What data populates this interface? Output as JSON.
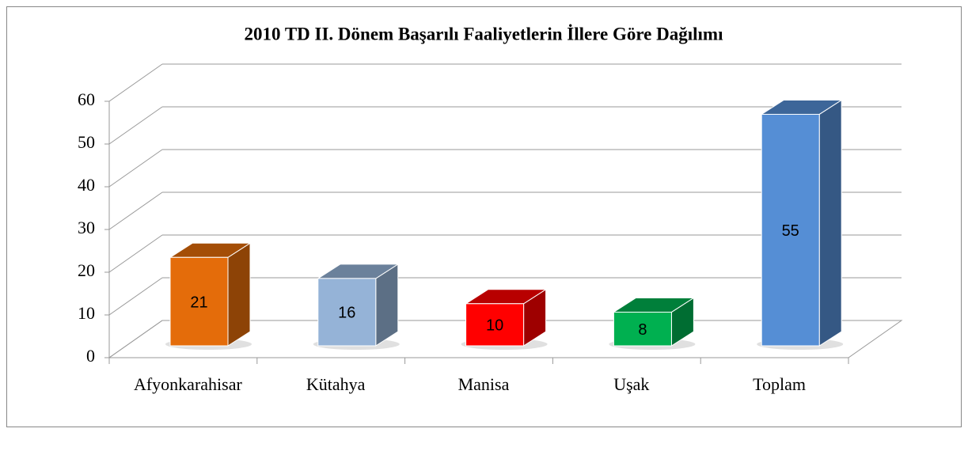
{
  "chart_data": {
    "type": "bar3d",
    "title": "2010 TD II. Dönem Başarılı Faaliyetlerin İllere Göre Dağılımı",
    "categories": [
      "Afyonkarahisar",
      "Kütahya",
      "Manisa",
      "Uşak",
      "Toplam"
    ],
    "values": [
      21,
      16,
      10,
      8,
      55
    ],
    "colors": [
      "#e46c0a",
      "#95b3d7",
      "#ff0000",
      "#00b050",
      "#558ed5"
    ],
    "ylim": [
      0,
      60
    ],
    "yticks": [
      0,
      10,
      20,
      30,
      40,
      50,
      60
    ],
    "grid": true
  }
}
